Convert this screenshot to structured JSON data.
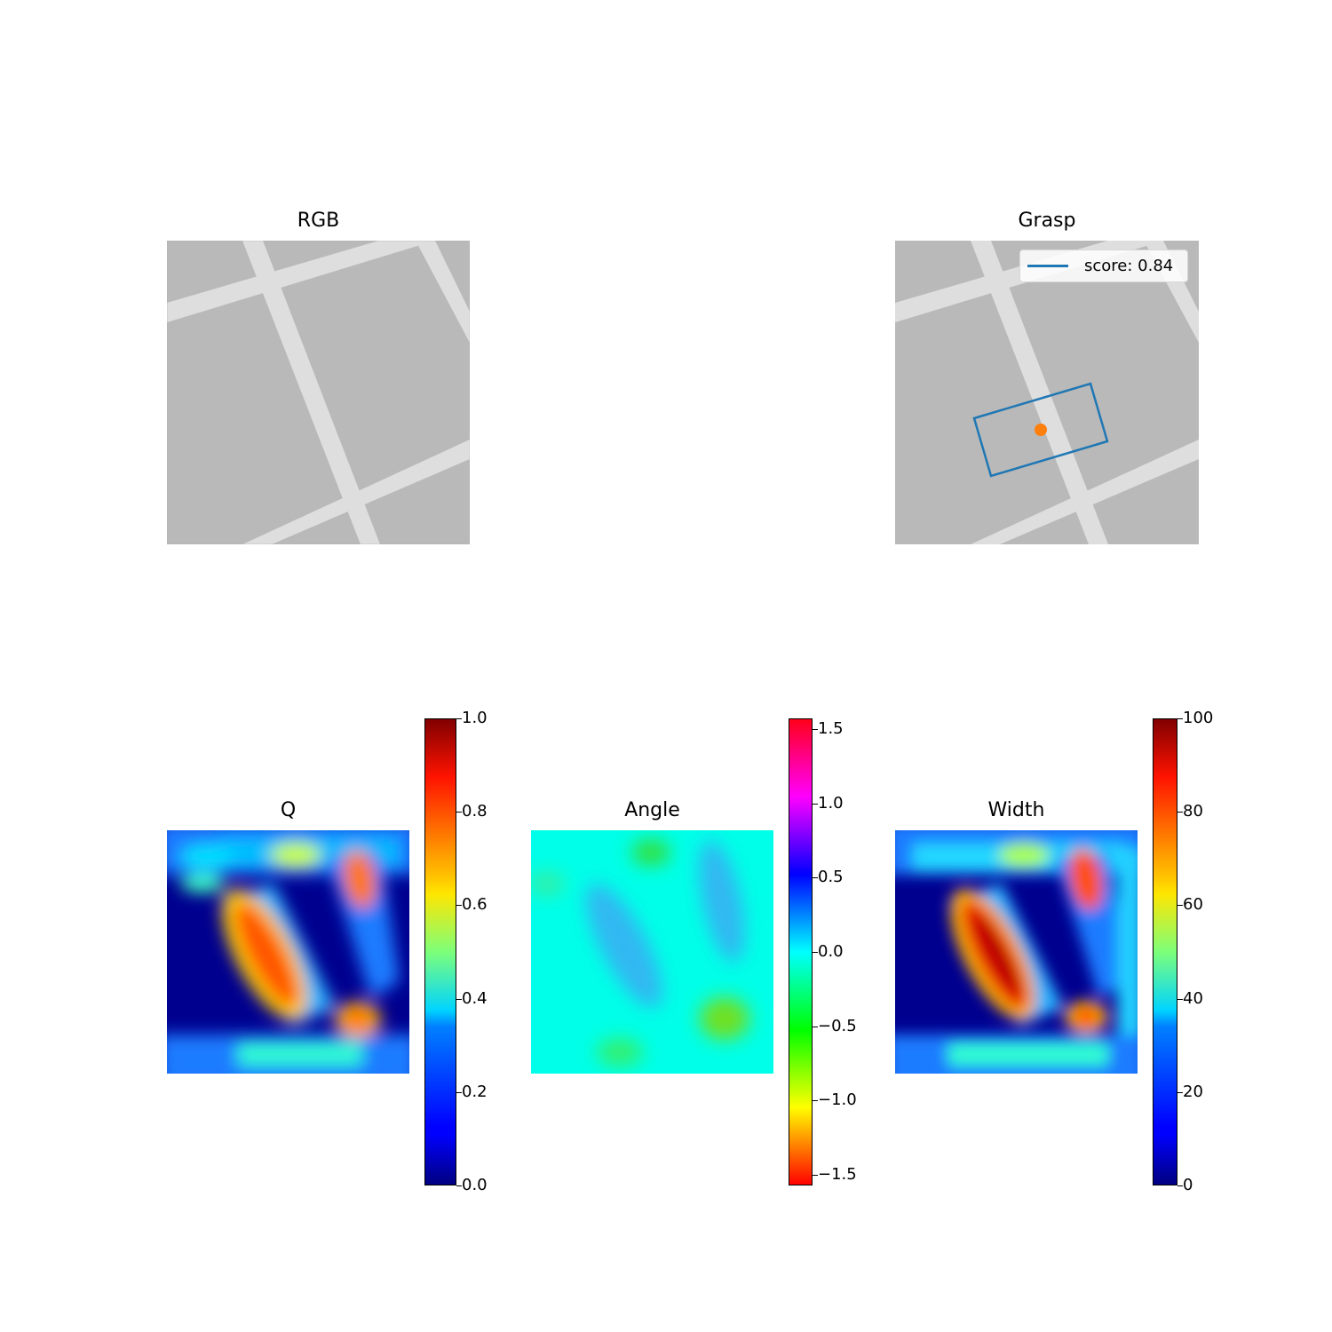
{
  "colors": {
    "grasp_box": "#1f77b4",
    "grasp_center": "#ff7f0e",
    "tray_bg": "#b9b9b9",
    "tray_bar": "#dedede"
  },
  "panels": {
    "rgb": {
      "title": "RGB"
    },
    "grasp": {
      "title": "Grasp",
      "legend_label": "score: 0.84"
    },
    "q": {
      "title": "Q"
    },
    "angle": {
      "title": "Angle"
    },
    "width": {
      "title": "Width"
    }
  },
  "chart_data": [
    {
      "type": "image",
      "title": "RGB"
    },
    {
      "type": "image",
      "title": "Grasp",
      "legend": [
        "score: 0.84"
      ],
      "legend_placement": "top-right",
      "grasp": {
        "score": 0.84
      }
    },
    {
      "type": "heatmap",
      "title": "Q",
      "colormap": "jet",
      "colorbar": {
        "range": [
          0.0,
          1.0
        ],
        "ticks": [
          "0.0",
          "0.2",
          "0.4",
          "0.6",
          "0.8",
          "1.0"
        ],
        "tick_values": [
          0,
          0.2,
          0.4,
          0.6,
          0.8,
          1.0
        ]
      }
    },
    {
      "type": "heatmap",
      "title": "Angle",
      "colormap": "hsv",
      "colorbar": {
        "range": [
          -1.5708,
          1.5708
        ],
        "ticks": [
          "−1.5",
          "−1.0",
          "−0.5",
          "0.0",
          "0.5",
          "1.0",
          "1.5"
        ],
        "tick_values": [
          -1.5,
          -1.0,
          -0.5,
          0.0,
          0.5,
          1.0,
          1.5
        ]
      }
    },
    {
      "type": "heatmap",
      "title": "Width",
      "colormap": "jet",
      "colorbar": {
        "range": [
          0,
          100
        ],
        "ticks": [
          "0",
          "20",
          "40",
          "60",
          "80",
          "100"
        ],
        "tick_values": [
          0,
          20,
          40,
          60,
          80,
          100
        ]
      }
    }
  ]
}
